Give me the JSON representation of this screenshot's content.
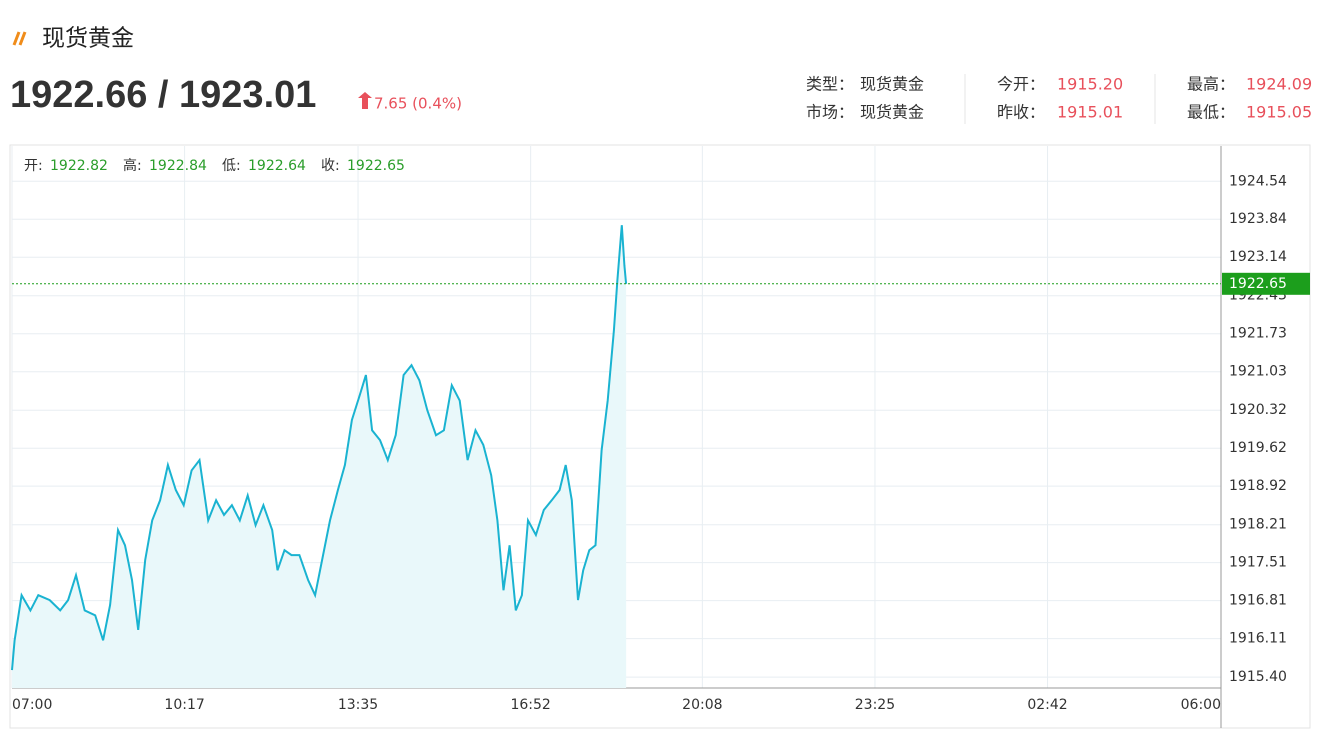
{
  "header": {
    "title": "现货黄金",
    "price": "1922.66 / 1923.01",
    "change": "7.65 (0.4%)",
    "info": [
      [
        {
          "label": "类型：",
          "value": "现货黄金"
        },
        {
          "label": "今开：",
          "value": "1915.20"
        },
        {
          "label": "最高：",
          "value": "1924.09"
        }
      ],
      [
        {
          "label": "市场：",
          "value": "现货黄金"
        },
        {
          "label": "昨收：",
          "value": "1915.01"
        },
        {
          "label": "最低：",
          "value": "1915.05"
        }
      ]
    ]
  },
  "chart_data": {
    "type": "line",
    "ohlc": [
      {
        "label": "开:",
        "value": 1922.82
      },
      {
        "label": "高:",
        "value": 1922.84
      },
      {
        "label": "低:",
        "value": 1922.64
      },
      {
        "label": "收:",
        "value": 1922.65
      }
    ],
    "x": [
      0,
      3,
      11,
      21,
      30,
      43,
      55,
      64,
      73,
      83,
      95,
      104,
      112,
      121,
      129,
      137,
      144,
      152,
      160,
      169,
      178,
      187,
      196,
      205,
      214,
      224,
      233,
      242,
      251,
      260,
      269,
      278,
      287,
      297,
      303,
      311,
      319,
      328,
      338,
      346,
      354,
      363,
      372,
      380,
      388,
      397,
      404,
      411,
      420,
      429,
      438,
      447,
      456,
      465,
      474,
      484,
      493,
      502,
      511,
      520,
      529,
      538,
      547,
      554,
      561,
      568,
      575,
      582,
      589,
      598,
      607,
      616,
      625,
      632,
      639,
      646,
      652,
      659,
      666,
      673,
      680,
      687,
      691,
      696,
      699,
      701
    ],
    "values": [
      1915.53,
      1916.08,
      1916.91,
      1916.63,
      1916.91,
      1916.82,
      1916.63,
      1916.82,
      1917.28,
      1916.63,
      1916.54,
      1916.08,
      1916.73,
      1918.11,
      1917.83,
      1917.19,
      1916.27,
      1917.56,
      1918.29,
      1918.66,
      1919.31,
      1918.85,
      1918.57,
      1919.21,
      1919.4,
      1918.29,
      1918.66,
      1918.39,
      1918.57,
      1918.29,
      1918.75,
      1918.2,
      1918.57,
      1918.11,
      1917.37,
      1917.74,
      1917.65,
      1917.65,
      1917.19,
      1916.91,
      1917.56,
      1918.29,
      1918.85,
      1919.31,
      1920.14,
      1920.6,
      1920.97,
      1919.95,
      1919.77,
      1919.4,
      1919.86,
      1920.97,
      1921.15,
      1920.87,
      1920.32,
      1919.86,
      1919.95,
      1920.78,
      1920.5,
      1919.4,
      1919.95,
      1919.68,
      1919.12,
      1918.29,
      1917.0,
      1917.83,
      1916.63,
      1916.91,
      1918.29,
      1918.02,
      1918.48,
      1918.66,
      1918.85,
      1919.31,
      1918.66,
      1916.82,
      1917.37,
      1917.74,
      1917.83,
      1919.58,
      1920.5,
      1921.79,
      1922.72,
      1923.73,
      1922.99,
      1922.65
    ],
    "color": "#1ab3d1",
    "fill_color": "#e9f8fa",
    "current": 1922.65,
    "current_color": "#1c9e1c",
    "xlim": [
      0,
      1380
    ],
    "xticks": [
      {
        "value": 0,
        "label": "07:00"
      },
      {
        "value": 197,
        "label": "10:17"
      },
      {
        "value": 395,
        "label": "13:35"
      },
      {
        "value": 592,
        "label": "16:52"
      },
      {
        "value": 788,
        "label": "20:08"
      },
      {
        "value": 985,
        "label": "23:25"
      },
      {
        "value": 1182,
        "label": "02:42"
      },
      {
        "value": 1380,
        "label": "06:00"
      }
    ],
    "ylim": [
      1915.2,
      1925.19
    ],
    "yticks": [
      {
        "value": 1915.4,
        "label": "1915.40"
      },
      1916.11,
      1916.81,
      1917.51,
      1918.21,
      1918.92,
      1919.62,
      1920.32,
      1921.03,
      1921.73,
      1922.43,
      1923.14,
      1923.84,
      1924.54
    ],
    "grid": true
  }
}
